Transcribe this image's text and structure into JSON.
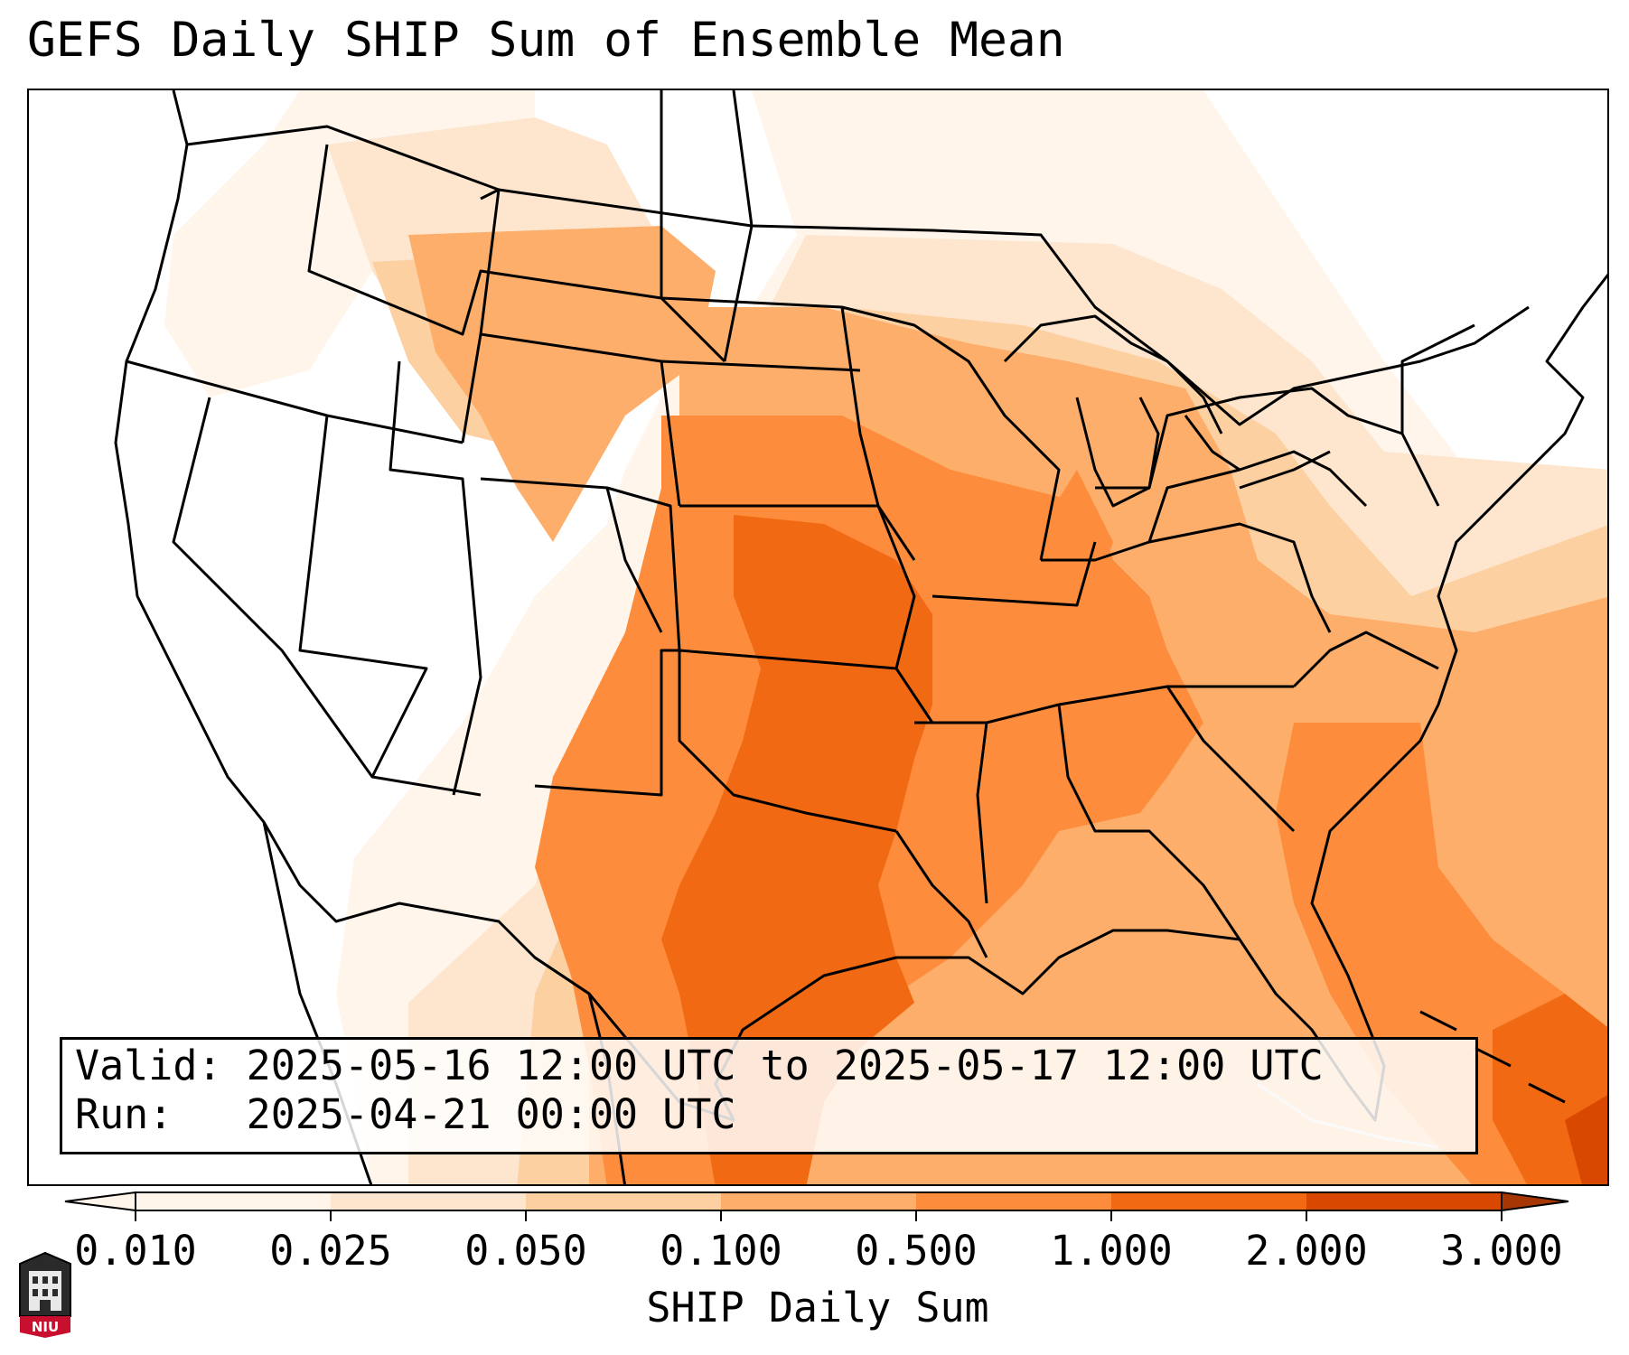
{
  "title": "GEFS Daily SHIP Sum of Ensemble Mean",
  "valid_line": "Valid: 2025-05-16 12:00 UTC to 2025-05-17 12:00 UTC",
  "run_line": "Run:   2025-04-21 00:00 UTC",
  "colorbar": {
    "label": "SHIP Daily Sum",
    "ticks": [
      "0.010",
      "0.025",
      "0.050",
      "0.100",
      "0.500",
      "1.000",
      "2.000",
      "3.000"
    ],
    "colors": [
      "#fff5eb",
      "#fee6ce",
      "#fdd0a2",
      "#fdae6b",
      "#fd8d3c",
      "#f16913",
      "#d94801"
    ],
    "extend": "both"
  },
  "logo_text": "NIU",
  "colors": {
    "lightest": "#fff5eb",
    "light": "#fee6ce",
    "pale": "#fdd0a2",
    "mid": "#fdae6b",
    "strong": "#fd8d3c",
    "high": "#f16913",
    "highest": "#d94801",
    "lines": "#000000"
  },
  "map": {
    "region": "Contiguous United States",
    "peak_area": "Kansas, Oklahoma and east Texas"
  }
}
